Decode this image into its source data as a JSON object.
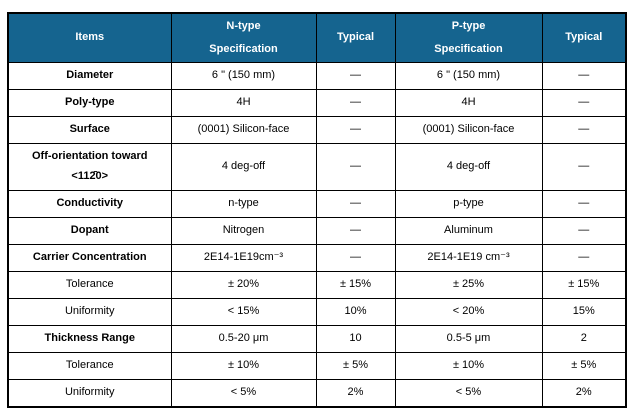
{
  "colors": {
    "header_bg": "#15648F",
    "header_text": "#ffffff",
    "border": "#000000",
    "body_bg": "#ffffff"
  },
  "table": {
    "header": {
      "items": "Items",
      "n_spec": "N-type\nSpecification",
      "n_typical": "Typical",
      "p_spec": "P-type\nSpecification",
      "p_typical": "Typical"
    },
    "rows": [
      {
        "item": "Diameter",
        "bold": true,
        "tall": false,
        "n_spec": "6 \" (150 mm)",
        "n_typical": "—",
        "p_spec": "6 \" (150 mm)",
        "p_typical": "—"
      },
      {
        "item": "Poly-type",
        "bold": true,
        "tall": false,
        "n_spec": "4H",
        "n_typical": "—",
        "p_spec": "4H",
        "p_typical": "—"
      },
      {
        "item": "Surface",
        "bold": true,
        "tall": false,
        "n_spec": "(0001) Silicon-face",
        "n_typical": "—",
        "p_spec": "(0001) Silicon-face",
        "p_typical": "—"
      },
      {
        "item": "Off-orientation toward\n<112̄0>",
        "bold": true,
        "tall": true,
        "n_spec": "4 deg-off",
        "n_typical": "—",
        "p_spec": "4 deg-off",
        "p_typical": "—"
      },
      {
        "item": "Conductivity",
        "bold": true,
        "tall": false,
        "n_spec": "n-type",
        "n_typical": "—",
        "p_spec": "p-type",
        "p_typical": "—"
      },
      {
        "item": "Dopant",
        "bold": true,
        "tall": false,
        "n_spec": "Nitrogen",
        "n_typical": "—",
        "p_spec": "Aluminum",
        "p_typical": "—"
      },
      {
        "item": "Carrier Concentration",
        "bold": true,
        "tall": false,
        "n_spec": "2E14-1E19cm⁻³",
        "n_typical": "—",
        "p_spec": "2E14-1E19 cm⁻³",
        "p_typical": "—"
      },
      {
        "item": "Tolerance",
        "bold": false,
        "tall": false,
        "n_spec": "± 20%",
        "n_typical": "± 15%",
        "p_spec": "± 25%",
        "p_typical": "± 15%"
      },
      {
        "item": "Uniformity",
        "bold": false,
        "tall": false,
        "n_spec": "< 15%",
        "n_typical": "10%",
        "p_spec": "< 20%",
        "p_typical": "15%"
      },
      {
        "item": "Thickness Range",
        "bold": true,
        "tall": false,
        "n_spec": "0.5-20 μm",
        "n_typical": "10",
        "p_spec": "0.5-5 μm",
        "p_typical": "2"
      },
      {
        "item": "Tolerance",
        "bold": false,
        "tall": false,
        "n_spec": "± 10%",
        "n_typical": "± 5%",
        "p_spec": "± 10%",
        "p_typical": "± 5%"
      },
      {
        "item": "Uniformity",
        "bold": false,
        "tall": false,
        "n_spec": "< 5%",
        "n_typical": "2%",
        "p_spec": "< 5%",
        "p_typical": "2%"
      }
    ]
  }
}
